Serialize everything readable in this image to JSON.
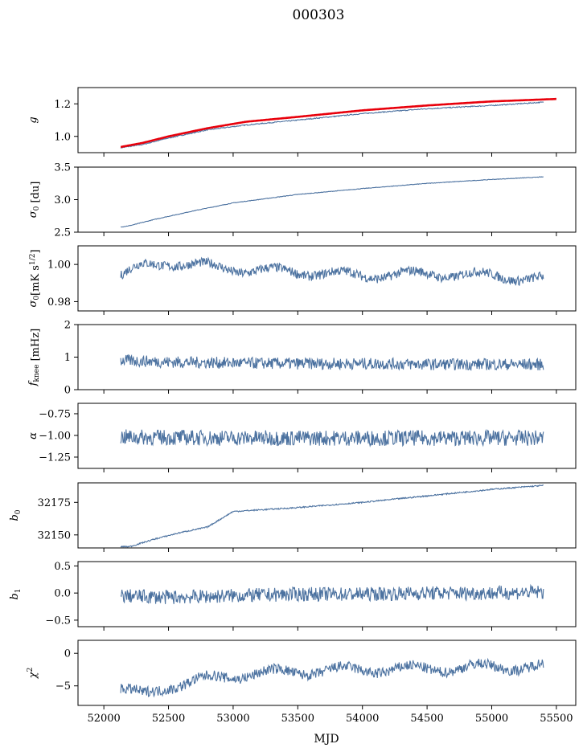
{
  "figure_title": "000303",
  "chart_data": [
    {
      "type": "line",
      "ylabel": "g",
      "ylim": [
        0.9,
        1.3
      ],
      "yticks": [
        1.0,
        1.2
      ],
      "ytick_labels": [
        "1.0",
        "1.2"
      ],
      "series": [
        {
          "color": "#4c72a0",
          "x": [
            52130,
            52300,
            52500,
            52800,
            53100,
            53500,
            54000,
            54500,
            55000,
            55400
          ],
          "y": [
            0.93,
            0.95,
            0.99,
            1.04,
            1.07,
            1.1,
            1.14,
            1.17,
            1.19,
            1.21
          ]
        },
        {
          "color": "#e8000b",
          "x": [
            52130,
            52300,
            52500,
            52800,
            53100,
            53500,
            54000,
            54500,
            55000,
            55500
          ],
          "y": [
            0.935,
            0.96,
            1.0,
            1.05,
            1.09,
            1.12,
            1.16,
            1.19,
            1.215,
            1.23
          ]
        }
      ]
    },
    {
      "type": "line",
      "ylabel": "σ0 [du]",
      "ylim": [
        2.5,
        3.5
      ],
      "yticks": [
        2.5,
        3.0,
        3.5
      ],
      "ytick_labels": [
        "2.5",
        "3.0",
        "3.5"
      ],
      "series": [
        {
          "color": "#4c72a0",
          "x": [
            52130,
            52200,
            52400,
            52700,
            53000,
            53500,
            54000,
            54500,
            55000,
            55400
          ],
          "y": [
            2.58,
            2.6,
            2.7,
            2.83,
            2.95,
            3.08,
            3.17,
            3.25,
            3.31,
            3.35
          ]
        }
      ]
    },
    {
      "type": "line",
      "ylabel": "σ0[mK s^1/2]",
      "ylim": [
        0.975,
        1.01
      ],
      "yticks": [
        0.98,
        1.0
      ],
      "ytick_labels": [
        "0.98",
        "1.00"
      ],
      "series": [
        {
          "color": "#4c72a0",
          "x": [
            52130,
            52300,
            52500,
            52800,
            53100,
            53500,
            54000,
            54500,
            55000,
            55400
          ],
          "y": [
            0.994,
            0.999,
            1.001,
            0.999,
            0.997,
            0.996,
            0.994,
            0.995,
            0.994,
            0.992
          ]
        }
      ]
    },
    {
      "type": "line",
      "ylabel": "fknee [mHz]",
      "ylim": [
        0,
        2
      ],
      "yticks": [
        0,
        1,
        2
      ],
      "ytick_labels": [
        "0",
        "1",
        "2"
      ],
      "series": [
        {
          "color": "#4c72a0",
          "x": [
            52130,
            52500,
            53000,
            53500,
            54000,
            54500,
            55000,
            55400
          ],
          "y": [
            0.9,
            0.85,
            0.82,
            0.8,
            0.8,
            0.78,
            0.78,
            0.77
          ]
        }
      ]
    },
    {
      "type": "line",
      "ylabel": "α",
      "ylim": [
        -1.38,
        -0.63
      ],
      "yticks": [
        -1.25,
        -1.0,
        -0.75
      ],
      "ytick_labels": [
        "−1.25",
        "−1.00",
        "−0.75"
      ],
      "series": [
        {
          "color": "#4c72a0",
          "x": [
            52130,
            53000,
            54000,
            55400
          ],
          "y": [
            -1.02,
            -1.03,
            -1.03,
            -1.03
          ]
        }
      ]
    },
    {
      "type": "line",
      "ylabel": "b0",
      "ylim": [
        32140,
        32190
      ],
      "yticks": [
        32150,
        32175
      ],
      "ytick_labels": [
        "32150",
        "32175"
      ],
      "series": [
        {
          "color": "#4c72a0",
          "x": [
            52130,
            52200,
            52400,
            52600,
            52800,
            52900,
            53000,
            53500,
            54000,
            54500,
            55000,
            55400
          ],
          "y": [
            32141,
            32141,
            32147,
            32152,
            32156,
            32162,
            32168,
            32171,
            32175,
            32180,
            32185,
            32188
          ]
        }
      ]
    },
    {
      "type": "line",
      "ylabel": "b1",
      "ylim": [
        -0.62,
        0.58
      ],
      "yticks": [
        -0.5,
        0.0,
        0.5
      ],
      "ytick_labels": [
        "−0.5",
        "0.0",
        "0.5"
      ],
      "series": [
        {
          "color": "#4c72a0",
          "x": [
            52130,
            52500,
            53000,
            53500,
            54000,
            54500,
            55000,
            55400
          ],
          "y": [
            -0.05,
            -0.08,
            -0.05,
            -0.02,
            -0.02,
            0.0,
            0.0,
            0.02
          ]
        }
      ]
    },
    {
      "type": "line",
      "ylabel": "χ2",
      "ylim": [
        -8,
        2
      ],
      "yticks": [
        -5,
        0
      ],
      "ytick_labels": [
        "−5",
        "0"
      ],
      "series": [
        {
          "color": "#4c72a0",
          "x": [
            52130,
            52300,
            52500,
            52800,
            53100,
            53500,
            54000,
            54500,
            55000,
            55400
          ],
          "y": [
            -5.5,
            -6.5,
            -5.0,
            -4.0,
            -3.2,
            -2.8,
            -2.5,
            -2.4,
            -2.1,
            -2.0
          ]
        }
      ]
    }
  ],
  "xaxis": {
    "label": "MJD",
    "xlim": [
      51800,
      55650
    ],
    "ticks": [
      52000,
      52500,
      53000,
      53500,
      54000,
      54500,
      55000,
      55500
    ],
    "tick_labels": [
      "52000",
      "52500",
      "53000",
      "53500",
      "54000",
      "54500",
      "55000",
      "55500"
    ]
  }
}
